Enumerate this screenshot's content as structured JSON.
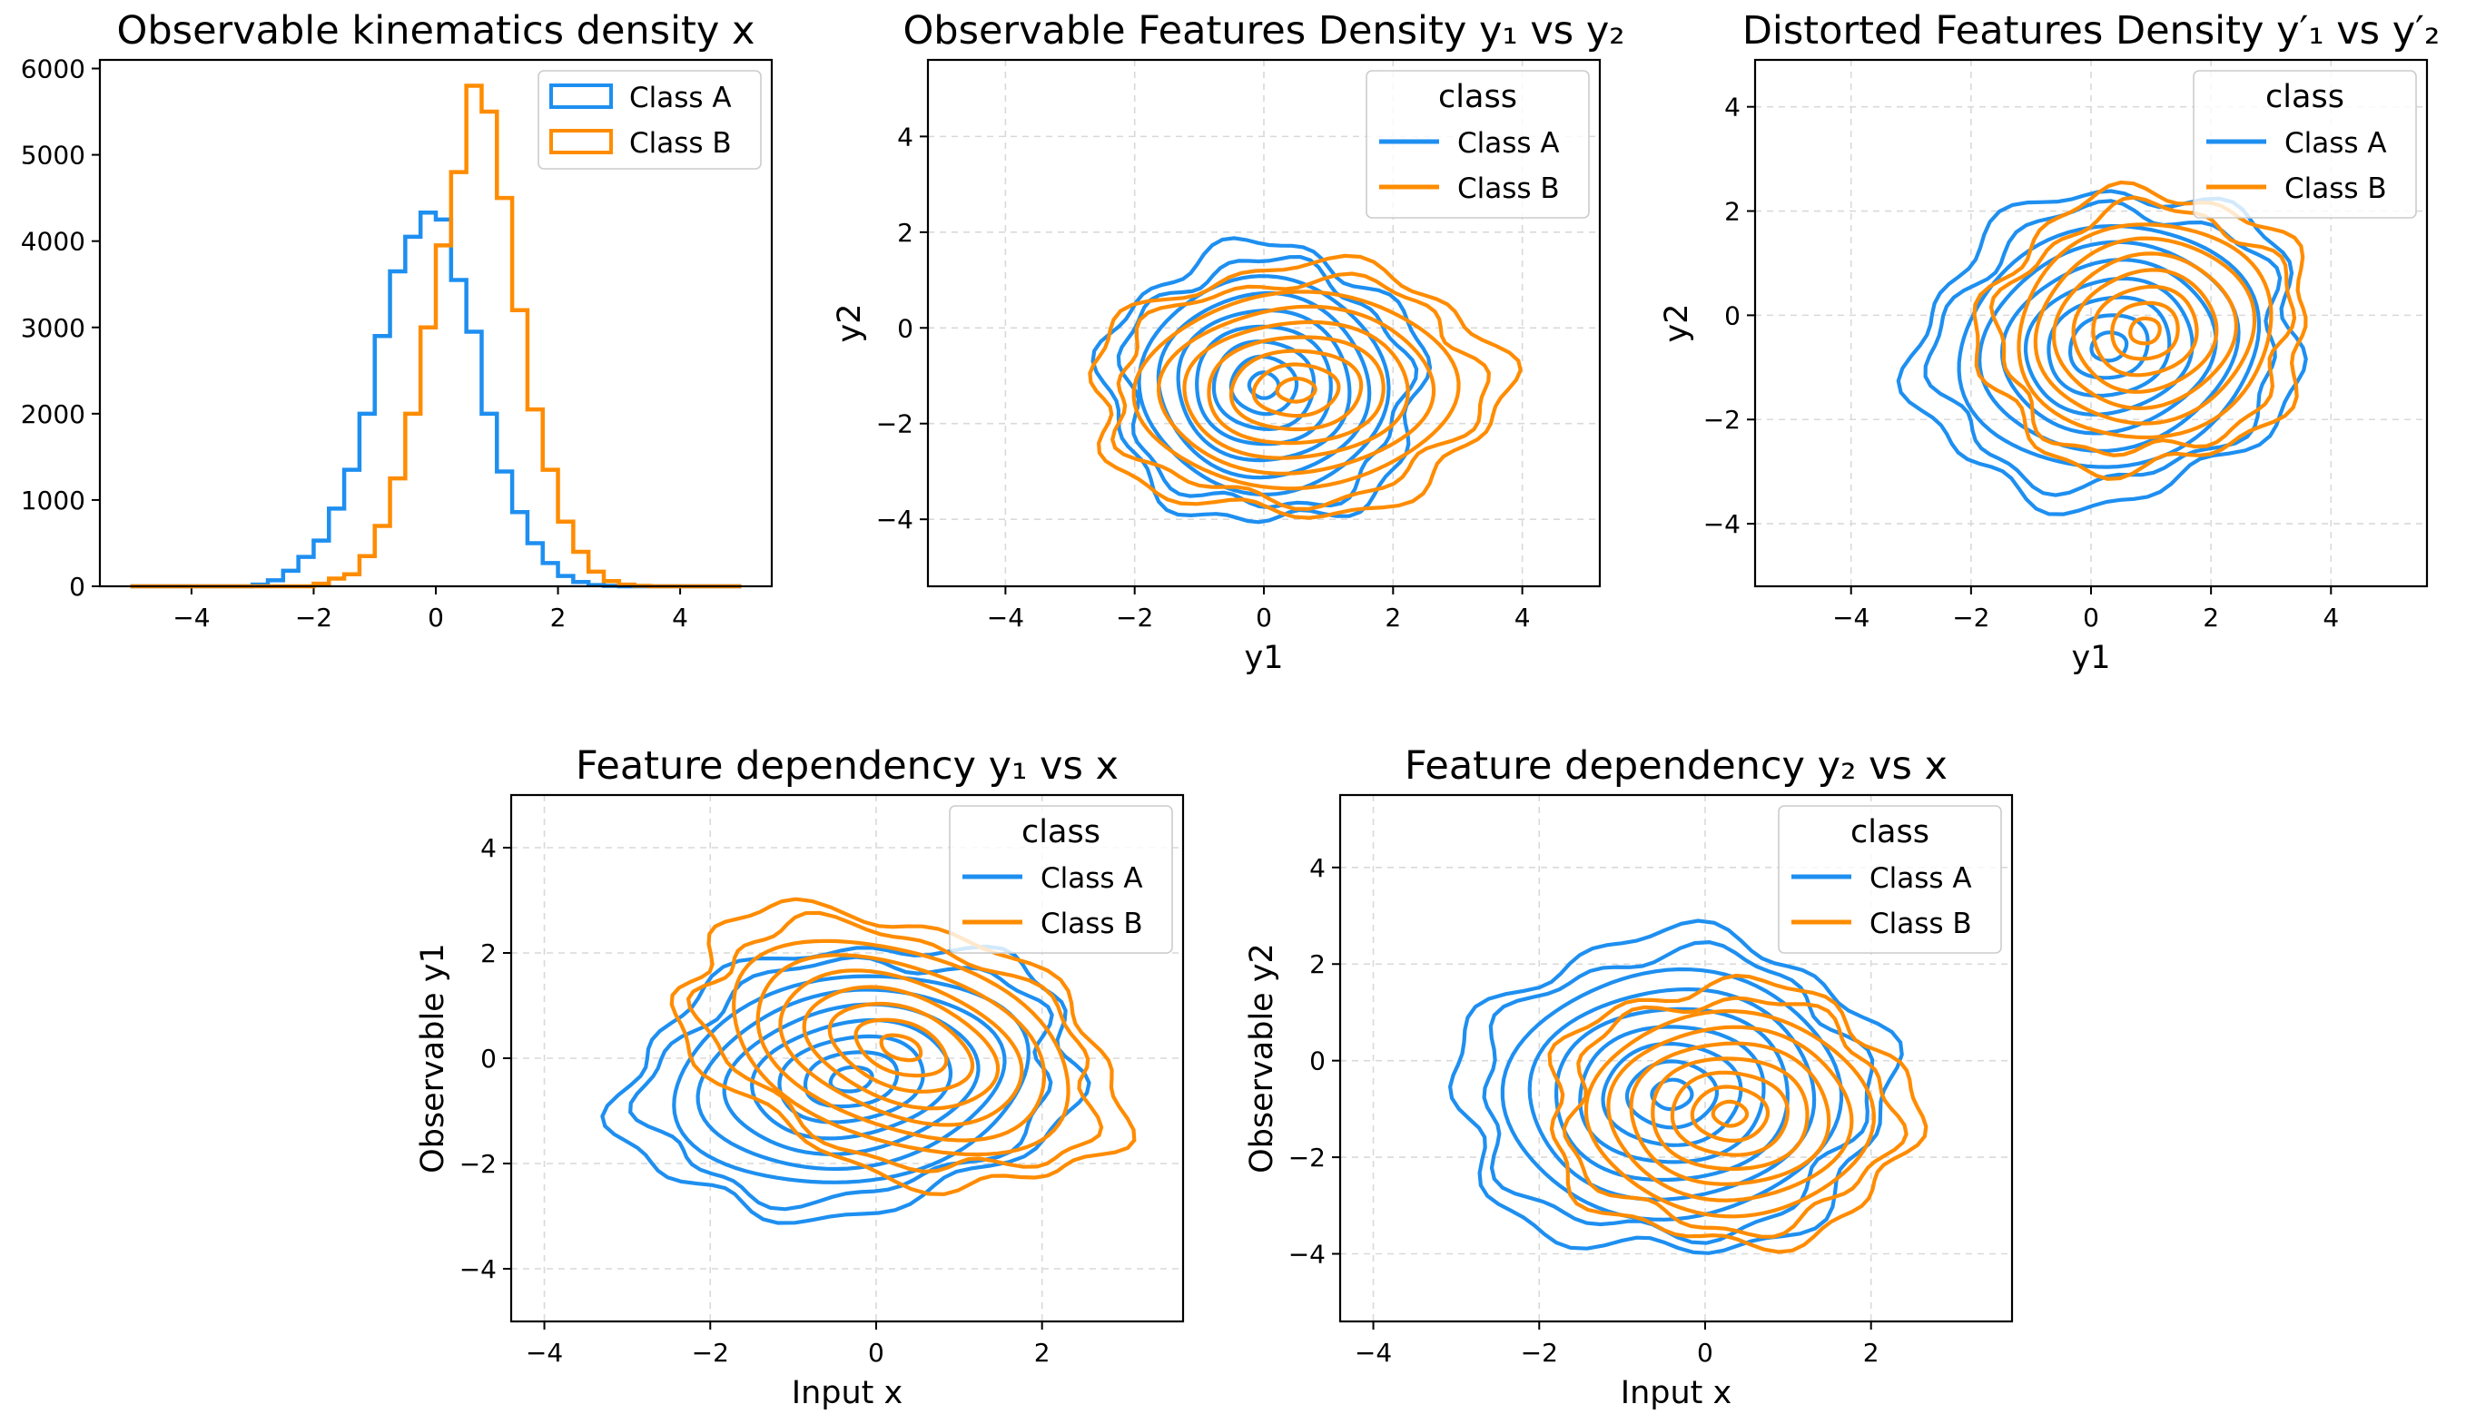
{
  "colors": {
    "class_a": "#1e8ff0",
    "class_b": "#ff8c00",
    "grid": "#d9d9d9",
    "legend_border": "#cccccc"
  },
  "chart_data": [
    {
      "type": "histogram",
      "title": "Observable kinematics density x",
      "xlabel": "",
      "ylabel": "",
      "xlim": [
        -5.5,
        5.5
      ],
      "ylim": [
        0,
        6100
      ],
      "xticks": [
        "−4",
        "−2",
        "0",
        "2",
        "4"
      ],
      "yticks": [
        "0",
        "1000",
        "2000",
        "3000",
        "4000",
        "5000",
        "6000"
      ],
      "grid": false,
      "legend": {
        "title": "",
        "location": "top-right",
        "entries": [
          "Class A",
          "Class B"
        ]
      },
      "bin_edges": [
        -5.0,
        -4.75,
        -4.5,
        -4.25,
        -4.0,
        -3.75,
        -3.5,
        -3.25,
        -3.0,
        -2.75,
        -2.5,
        -2.25,
        -2.0,
        -1.75,
        -1.5,
        -1.25,
        -1.0,
        -0.75,
        -0.5,
        -0.25,
        0.0,
        0.25,
        0.5,
        0.75,
        1.0,
        1.25,
        1.5,
        1.75,
        2.0,
        2.25,
        2.5,
        2.75,
        3.0,
        3.25,
        3.5,
        3.75,
        4.0,
        4.25,
        4.5,
        4.75,
        5.0
      ],
      "series": [
        {
          "name": "Class A",
          "values": [
            0,
            0,
            0,
            0,
            0,
            0,
            0,
            0,
            20,
            70,
            180,
            340,
            530,
            900,
            1350,
            2000,
            2900,
            3650,
            4050,
            4330,
            4250,
            3550,
            2950,
            2000,
            1330,
            860,
            500,
            270,
            120,
            50,
            15,
            5,
            0,
            0,
            0,
            0,
            0,
            0,
            0,
            0
          ]
        },
        {
          "name": "Class B",
          "values": [
            0,
            0,
            0,
            0,
            0,
            0,
            0,
            0,
            0,
            0,
            0,
            0,
            30,
            90,
            140,
            350,
            700,
            1250,
            2000,
            3000,
            3950,
            4800,
            5800,
            5500,
            4500,
            3200,
            2050,
            1350,
            750,
            400,
            170,
            60,
            20,
            5,
            0,
            0,
            0,
            0,
            0,
            0
          ]
        }
      ]
    },
    {
      "type": "kde_contour",
      "title": "Observable Features Density y₁ vs y₂",
      "xlabel": "y1",
      "ylabel": "y2",
      "xlim": [
        -5.2,
        5.2
      ],
      "ylim": [
        -5.4,
        5.6
      ],
      "xticks": [
        "−4",
        "−2",
        "0",
        "2",
        "4"
      ],
      "yticks": [
        "−4",
        "−2",
        "0",
        "2",
        "4"
      ],
      "grid": true,
      "legend": {
        "title": "class",
        "location": "top-right",
        "entries": [
          "Class A",
          "Class B"
        ]
      },
      "series": [
        {
          "name": "Class A",
          "center": [
            0.0,
            -1.2
          ],
          "extent": [
            2.45,
            2.9
          ],
          "correlation": 0.05,
          "levels": 9
        },
        {
          "name": "Class B",
          "center": [
            0.5,
            -1.3
          ],
          "extent": [
            3.2,
            2.6
          ],
          "correlation": 0.1,
          "levels": 9
        }
      ]
    },
    {
      "type": "kde_contour",
      "title": "Distorted Features Density y′₁ vs y′₂",
      "xlabel": "y1",
      "ylabel": "y2",
      "xlim": [
        -5.6,
        5.6
      ],
      "ylim": [
        -5.2,
        4.9
      ],
      "xticks": [
        "−4",
        "−2",
        "0",
        "2",
        "4"
      ],
      "yticks": [
        "−4",
        "−2",
        "0",
        "2",
        "4"
      ],
      "grid": true,
      "legend": {
        "title": "class",
        "location": "top-right",
        "entries": [
          "Class A",
          "Class B"
        ]
      },
      "series": [
        {
          "name": "Class A",
          "center": [
            0.3,
            -0.6
          ],
          "extent": [
            3.3,
            2.9
          ],
          "correlation": 0.45,
          "levels": 9
        },
        {
          "name": "Class B",
          "center": [
            0.9,
            -0.3
          ],
          "extent": [
            2.8,
            2.6
          ],
          "correlation": 0.6,
          "levels": 9
        }
      ]
    },
    {
      "type": "kde_contour",
      "title": "Feature dependency y₁ vs x",
      "xlabel": "Input x",
      "ylabel": "Observable y1",
      "xlim": [
        -4.4,
        3.7
      ],
      "ylim": [
        -5.0,
        5.0
      ],
      "xticks": [
        "−4",
        "−2",
        "0",
        "2"
      ],
      "yticks": [
        "−4",
        "−2",
        "0",
        "2",
        "4"
      ],
      "grid": true,
      "legend": {
        "title": "class",
        "location": "top-right",
        "entries": [
          "Class A",
          "Class B"
        ]
      },
      "series": [
        {
          "name": "Class A",
          "center": [
            -0.3,
            -0.4
          ],
          "extent": [
            2.9,
            2.4
          ],
          "correlation": 0.55,
          "levels": 9
        },
        {
          "name": "Class B",
          "center": [
            0.3,
            0.2
          ],
          "extent": [
            2.1,
            3.1
          ],
          "correlation": 0.85,
          "levels": 9
        }
      ]
    },
    {
      "type": "kde_contour",
      "title": "Feature dependency y₂ vs x",
      "xlabel": "Input x",
      "ylabel": "Observable y2",
      "xlim": [
        -4.4,
        3.7
      ],
      "ylim": [
        -5.4,
        5.5
      ],
      "xticks": [
        "−4",
        "−2",
        "0",
        "2"
      ],
      "yticks": [
        "−4",
        "−2",
        "0",
        "2",
        "4"
      ],
      "grid": true,
      "legend": {
        "title": "class",
        "location": "top-right",
        "entries": [
          "Class A",
          "Class B"
        ]
      },
      "series": [
        {
          "name": "Class A",
          "center": [
            -0.4,
            -0.7
          ],
          "extent": [
            2.6,
            3.3
          ],
          "correlation": -0.05,
          "levels": 9
        },
        {
          "name": "Class B",
          "center": [
            0.3,
            -1.1
          ],
          "extent": [
            2.2,
            2.7
          ],
          "correlation": 0.05,
          "levels": 9
        }
      ]
    }
  ]
}
